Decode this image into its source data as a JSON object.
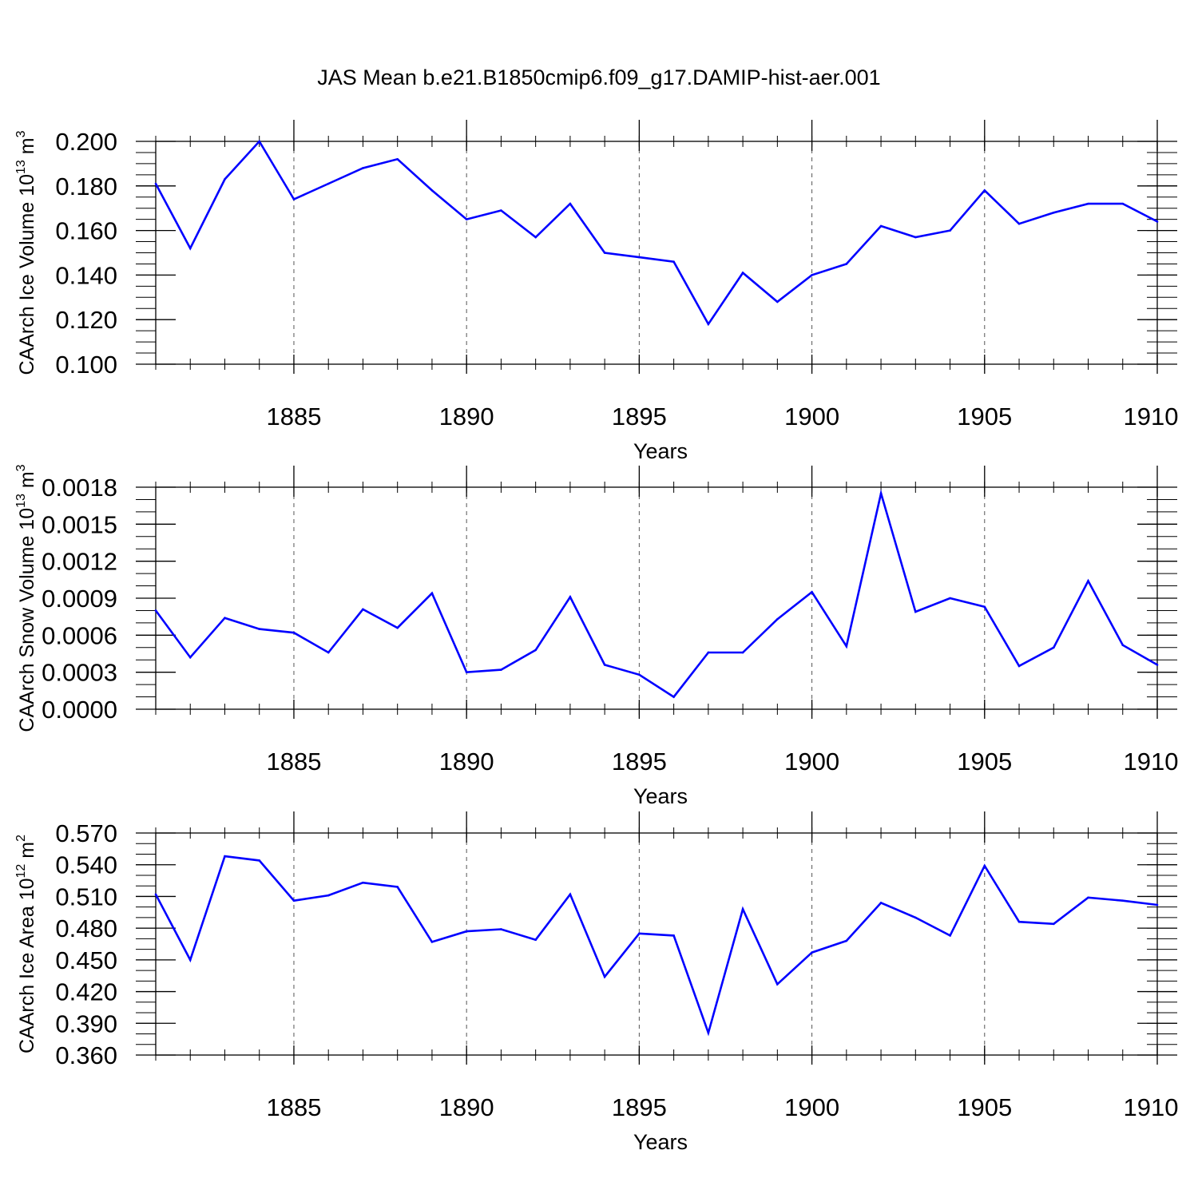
{
  "title": "JAS Mean b.e21.B1850cmip6.f09_g17.DAMIP-hist-aer.001",
  "colors": {
    "line": "#0000ff",
    "axis": "#000000",
    "grid": "#555555"
  },
  "chart_data": [
    {
      "type": "line",
      "ylabel": {
        "main": "CAArch Ice Volume 10",
        "sup": "13",
        "unit": " m",
        "unit_sup": "3"
      },
      "xlabel": "Years",
      "xlim": [
        1881,
        1910
      ],
      "ylim": [
        0.1,
        0.2
      ],
      "yticks": [
        0.1,
        0.12,
        0.14,
        0.16,
        0.18,
        0.2
      ],
      "ytick_labels": [
        "0.100",
        "0.120",
        "0.140",
        "0.160",
        "0.180",
        "0.200"
      ],
      "yminor": 0.005,
      "xticks": [
        1885,
        1890,
        1895,
        1900,
        1905,
        1910
      ],
      "xtick_labels": [
        "1885",
        "1890",
        "1895",
        "1900",
        "1905",
        "1910"
      ],
      "grid": "vertical dashed at major x ticks",
      "x": [
        1881,
        1882,
        1883,
        1884,
        1885,
        1886,
        1887,
        1888,
        1889,
        1890,
        1891,
        1892,
        1893,
        1894,
        1895,
        1896,
        1897,
        1898,
        1899,
        1900,
        1901,
        1902,
        1903,
        1904,
        1905,
        1906,
        1907,
        1908,
        1909,
        1910
      ],
      "values": [
        0.181,
        0.152,
        0.183,
        0.2,
        0.174,
        0.181,
        0.188,
        0.192,
        0.178,
        0.165,
        0.169,
        0.157,
        0.172,
        0.15,
        0.148,
        0.146,
        0.118,
        0.141,
        0.128,
        0.14,
        0.145,
        0.162,
        0.157,
        0.16,
        0.178,
        0.163,
        0.168,
        0.172,
        0.172,
        0.164
      ]
    },
    {
      "type": "line",
      "ylabel": {
        "main": "CAArch Snow Volume 10",
        "sup": "13",
        "unit": " m",
        "unit_sup": "3"
      },
      "xlabel": "Years",
      "xlim": [
        1881,
        1910
      ],
      "ylim": [
        0,
        0.0018
      ],
      "yticks": [
        0,
        0.0003,
        0.0006,
        0.0009,
        0.0012,
        0.0015,
        0.0018
      ],
      "ytick_labels": [
        "0.0000",
        "0.0003",
        "0.0006",
        "0.0009",
        "0.0012",
        "0.0015",
        "0.0018"
      ],
      "yminor": 0.0001,
      "xticks": [
        1885,
        1890,
        1895,
        1900,
        1905,
        1910
      ],
      "xtick_labels": [
        "1885",
        "1890",
        "1895",
        "1900",
        "1905",
        "1910"
      ],
      "grid": "vertical dashed at major x ticks",
      "x": [
        1881,
        1882,
        1883,
        1884,
        1885,
        1886,
        1887,
        1888,
        1889,
        1890,
        1891,
        1892,
        1893,
        1894,
        1895,
        1896,
        1897,
        1898,
        1899,
        1900,
        1901,
        1902,
        1903,
        1904,
        1905,
        1906,
        1907,
        1908,
        1909,
        1910
      ],
      "values": [
        0.0008,
        0.00042,
        0.00074,
        0.00065,
        0.00062,
        0.00046,
        0.00081,
        0.00066,
        0.00094,
        0.0003,
        0.00032,
        0.00048,
        0.00091,
        0.00036,
        0.00028,
        0.0001,
        0.00046,
        0.00046,
        0.00073,
        0.00095,
        0.00051,
        0.00175,
        0.00079,
        0.0009,
        0.00083,
        0.00035,
        0.0005,
        0.00104,
        0.00052,
        0.00036
      ]
    },
    {
      "type": "line",
      "ylabel": {
        "main": "CAArch Ice Area 10",
        "sup": "12",
        "unit": " m",
        "unit_sup": "2"
      },
      "xlabel": "Years",
      "xlim": [
        1881,
        1910
      ],
      "ylim": [
        0.36,
        0.57
      ],
      "yticks": [
        0.36,
        0.39,
        0.42,
        0.45,
        0.48,
        0.51,
        0.54,
        0.57
      ],
      "ytick_labels": [
        "0.360",
        "0.390",
        "0.420",
        "0.450",
        "0.480",
        "0.510",
        "0.540",
        "0.570"
      ],
      "yminor": 0.01,
      "xticks": [
        1885,
        1890,
        1895,
        1900,
        1905,
        1910
      ],
      "xtick_labels": [
        "1885",
        "1890",
        "1895",
        "1900",
        "1905",
        "1910"
      ],
      "grid": "vertical dashed at major x ticks",
      "x": [
        1881,
        1882,
        1883,
        1884,
        1885,
        1886,
        1887,
        1888,
        1889,
        1890,
        1891,
        1892,
        1893,
        1894,
        1895,
        1896,
        1897,
        1898,
        1899,
        1900,
        1901,
        1902,
        1903,
        1904,
        1905,
        1906,
        1907,
        1908,
        1909,
        1910
      ],
      "values": [
        0.512,
        0.45,
        0.548,
        0.544,
        0.506,
        0.511,
        0.523,
        0.519,
        0.467,
        0.477,
        0.479,
        0.469,
        0.512,
        0.434,
        0.475,
        0.473,
        0.381,
        0.498,
        0.427,
        0.457,
        0.468,
        0.504,
        0.49,
        0.473,
        0.539,
        0.486,
        0.484,
        0.509,
        0.506,
        0.502
      ]
    }
  ]
}
